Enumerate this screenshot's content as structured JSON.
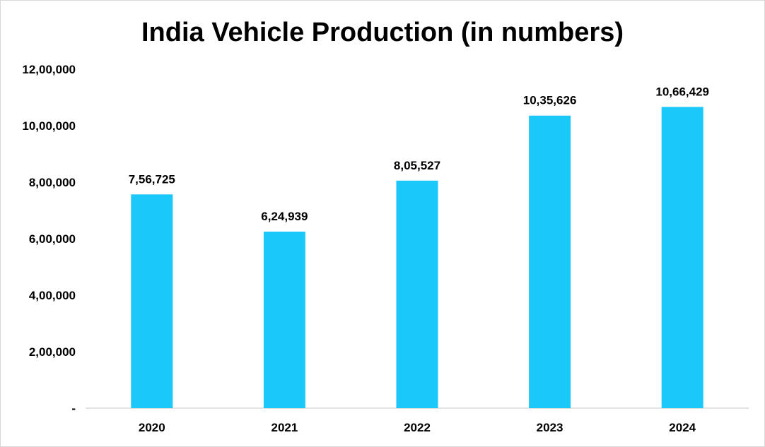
{
  "chart_data": {
    "type": "bar",
    "title": "India Vehicle Production (in numbers)",
    "categories": [
      "2020",
      "2021",
      "2022",
      "2023",
      "2024"
    ],
    "values": [
      756725,
      624939,
      805527,
      1035626,
      1066429
    ],
    "data_labels": [
      "7,56,725",
      "6,24,939",
      "8,05,527",
      "10,35,626",
      "10,66,429"
    ],
    "ylim": [
      0,
      1200000
    ],
    "y_ticks": [
      0,
      200000,
      400000,
      600000,
      800000,
      1000000,
      1200000
    ],
    "y_tick_labels": [
      "-",
      "2,00,000",
      "4,00,000",
      "6,00,000",
      "8,00,000",
      "10,00,000",
      "12,00,000"
    ],
    "xlabel": "",
    "ylabel": "",
    "grid": false,
    "legend": "none",
    "bar_color": "#1ac8fa"
  }
}
